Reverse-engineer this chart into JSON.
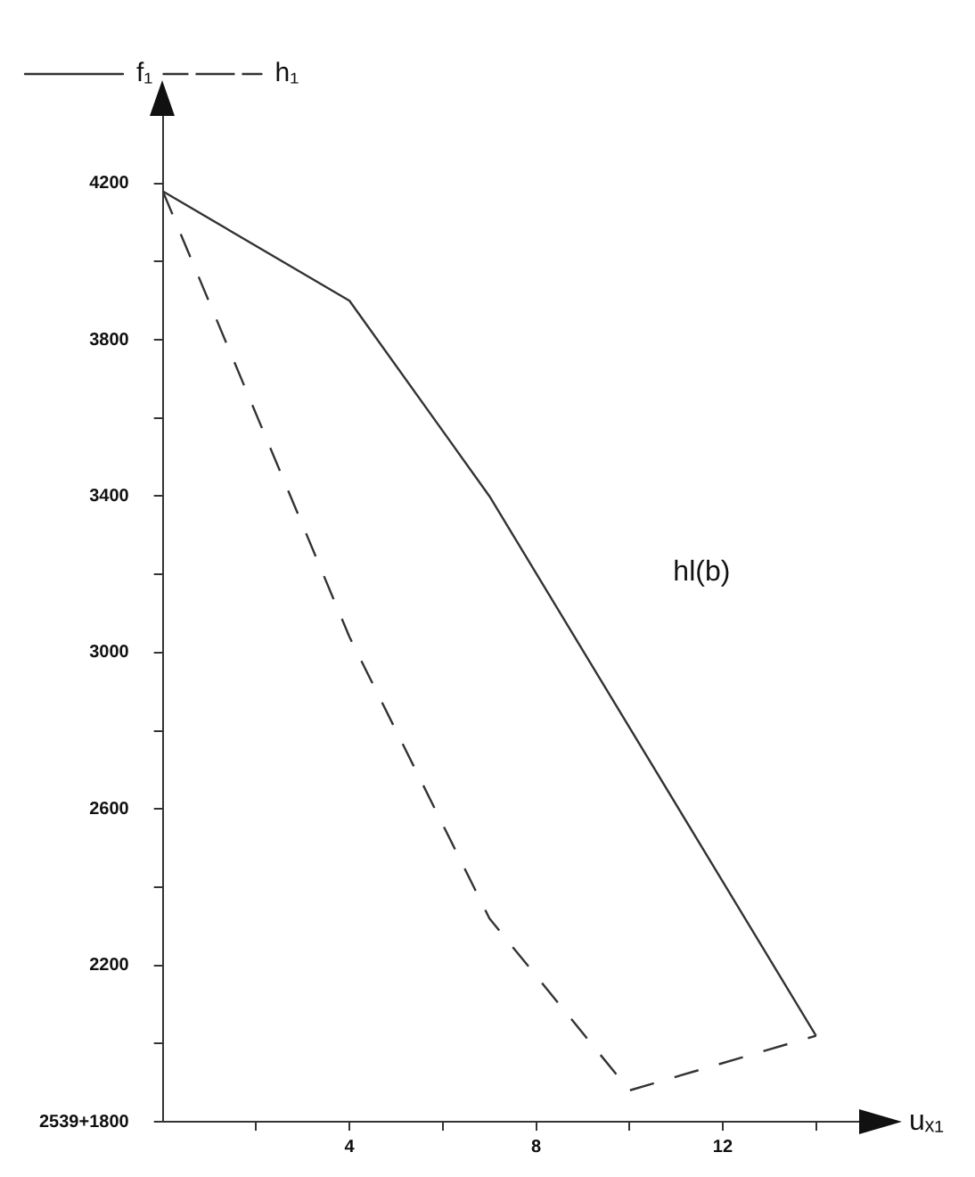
{
  "chart_data": {
    "type": "line",
    "xlabel": "uₓ₁",
    "series": [
      {
        "name": "f₁",
        "color": "#333333",
        "line_style": "solid",
        "x": [
          0,
          4,
          7,
          14
        ],
        "values": [
          4180,
          3900,
          3400,
          2020
        ]
      },
      {
        "name": "h₁",
        "color": "#333333",
        "line_style": "dashed",
        "x": [
          0,
          4,
          7,
          10,
          14
        ],
        "values": [
          4180,
          3040,
          2320,
          1880,
          2020
        ]
      }
    ],
    "xlim": [
      0,
      15
    ],
    "ylim": [
      1800,
      4400
    ],
    "xticks": [
      {
        "value": 2,
        "label": null
      },
      4,
      {
        "value": 6,
        "label": null
      },
      8,
      {
        "value": 10,
        "label": null
      },
      12,
      {
        "value": 14,
        "label": null
      }
    ],
    "yticks": [
      {
        "value": 1800,
        "label": "2539+1800"
      },
      {
        "value": 2000,
        "label": null
      },
      2200,
      {
        "value": 2400,
        "label": null
      },
      2600,
      {
        "value": 2800,
        "label": null
      },
      3000,
      {
        "value": 3200,
        "label": null
      },
      3400,
      {
        "value": 3600,
        "label": null
      },
      3800,
      {
        "value": 4000,
        "label": null
      },
      4200
    ],
    "annotations": [
      "hl(b)"
    ],
    "legend": "top left",
    "grid": false,
    "marker": "none"
  }
}
